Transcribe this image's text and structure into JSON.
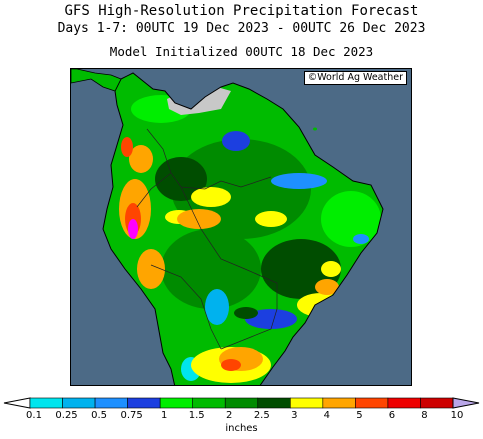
{
  "header": {
    "title": "GFS High-Resolution Precipitation Forecast",
    "period": "Days 1-7: 00UTC 19 Dec 2023 - 00UTC 26 Dec 2023",
    "init": "Model Initialized 00UTC 18 Dec 2023"
  },
  "map": {
    "credit": "©World Ag Weather",
    "region": "South America (northern and central)",
    "ocean_color": "#4c6a86",
    "no_data_land_color": "#c8c8c8"
  },
  "legend": {
    "units": "inches",
    "ticks": [
      "0.1",
      "0.25",
      "0.5",
      "0.75",
      "1",
      "1.5",
      "2",
      "2.5",
      "3",
      "4",
      "5",
      "6",
      "8",
      "10"
    ],
    "colors": [
      "#00e5ee",
      "#00b2ee",
      "#1e90ff",
      "#1c3fe0",
      "#00ee00",
      "#00bb00",
      "#008b00",
      "#004d00",
      "#ffff00",
      "#ffa500",
      "#ff4500",
      "#ee0000",
      "#cd0000",
      "#ff00ff",
      "#8a2be2",
      "#9370db"
    ],
    "under_color": "#ffffff",
    "over_color": "#b9a6e8"
  }
}
